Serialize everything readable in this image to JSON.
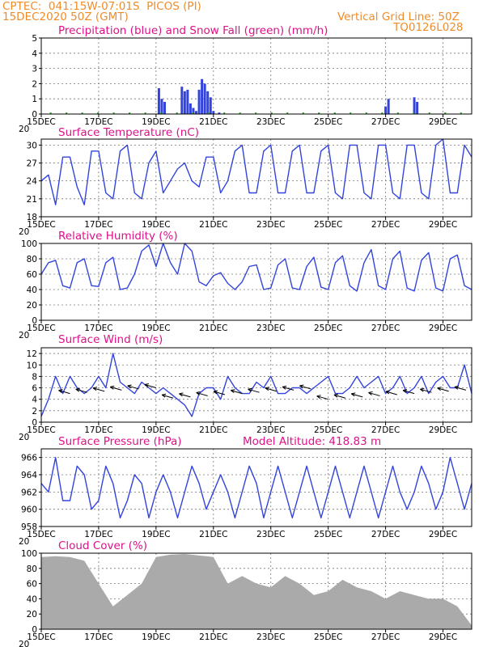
{
  "header": {
    "line1": "CPTEC:  041:15W-07:01S  PICOS (PI)",
    "line2": "15DEC2020 50Z (GMT)",
    "right1": "Vertical Grid Line: 50Z",
    "right2": "TQ0126L028"
  },
  "colors": {
    "header": "#f08c28",
    "title": "#dd1188",
    "line": "#3344dd",
    "snow": "#22aa22",
    "cloud": "#aaaaaa"
  },
  "x_tick_labels": [
    "15DEC",
    "17DEC",
    "19DEC",
    "21DEC",
    "23DEC",
    "25DEC",
    "27DEC",
    "29DEC"
  ],
  "x_year_fragment": "20",
  "panels": [
    {
      "id": "precip",
      "title": "Precipitation (blue) and Snow Fall (green) (mm/h)",
      "yticks": [
        "0",
        "1",
        "2",
        "3",
        "4",
        "5"
      ]
    },
    {
      "id": "temp",
      "title": "Surface Temperature (nC)",
      "yticks": [
        "18",
        "21",
        "24",
        "27",
        "30"
      ]
    },
    {
      "id": "rh",
      "title": "Relative Humidity (%)",
      "yticks": [
        "0",
        "20",
        "40",
        "60",
        "80",
        "100"
      ]
    },
    {
      "id": "wind",
      "title": "Surface Wind (m/s)",
      "yticks": [
        "0",
        "2",
        "4",
        "6",
        "8",
        "10",
        "12"
      ]
    },
    {
      "id": "pres",
      "title": "Surface Pressure (hPa)",
      "title2": "Model Altitude: 418.83 m",
      "yticks": [
        "958",
        "960",
        "962",
        "964",
        "966"
      ]
    },
    {
      "id": "cloud",
      "title": "Cloud Cover (%)",
      "yticks": [
        "0",
        "20",
        "40",
        "60",
        "80",
        "100"
      ]
    }
  ],
  "chart_data": [
    {
      "type": "bar",
      "title": "Precipitation (blue) and Snow Fall (green) (mm/h)",
      "x_unit": "days since 15DEC 00Z",
      "ylim": [
        0,
        5
      ],
      "x": [
        4.1,
        4.2,
        4.3,
        4.9,
        5.0,
        5.1,
        5.2,
        5.3,
        5.4,
        5.5,
        5.6,
        5.7,
        5.8,
        5.9,
        6.0,
        6.2,
        12.0,
        12.1,
        13.0,
        13.1
      ],
      "values": [
        1.7,
        1.0,
        0.8,
        1.8,
        1.5,
        1.6,
        0.7,
        0.4,
        0.2,
        1.6,
        2.3,
        2.0,
        1.5,
        1.1,
        0.2,
        0.1,
        0.5,
        1.0,
        1.1,
        0.8
      ]
    },
    {
      "type": "line",
      "title": "Surface Temperature (nC)",
      "ylim": [
        18,
        31
      ],
      "x": [
        0,
        0.25,
        0.5,
        0.75,
        1,
        1.25,
        1.5,
        1.75,
        2,
        2.25,
        2.5,
        2.75,
        3,
        3.25,
        3.5,
        3.75,
        4,
        4.25,
        4.5,
        4.75,
        5,
        5.25,
        5.5,
        5.75,
        6,
        6.25,
        6.5,
        6.75,
        7,
        7.25,
        7.5,
        7.75,
        8,
        8.25,
        8.5,
        8.75,
        9,
        9.25,
        9.5,
        9.75,
        10,
        10.25,
        10.5,
        10.75,
        11,
        11.25,
        11.5,
        11.75,
        12,
        12.25,
        12.5,
        12.75,
        13,
        13.25,
        13.5,
        13.75,
        14,
        14.25,
        14.5,
        14.75,
        15
      ],
      "values": [
        24,
        25,
        20,
        28,
        28,
        23,
        20,
        29,
        29,
        22,
        21,
        29,
        30,
        22,
        21,
        27,
        29,
        22,
        24,
        26,
        27,
        24,
        23,
        28,
        28,
        22,
        24,
        29,
        30,
        22,
        22,
        29,
        30,
        22,
        22,
        29,
        30,
        22,
        22,
        29,
        30,
        22,
        21,
        30,
        30,
        22,
        21,
        30,
        30,
        22,
        21,
        30,
        30,
        22,
        21,
        30,
        31,
        22,
        22,
        30,
        28
      ]
    },
    {
      "type": "line",
      "title": "Relative Humidity (%)",
      "ylim": [
        0,
        100
      ],
      "x": [
        0,
        0.25,
        0.5,
        0.75,
        1,
        1.25,
        1.5,
        1.75,
        2,
        2.25,
        2.5,
        2.75,
        3,
        3.25,
        3.5,
        3.75,
        4,
        4.25,
        4.5,
        4.75,
        5,
        5.25,
        5.5,
        5.75,
        6,
        6.25,
        6.5,
        6.75,
        7,
        7.25,
        7.5,
        7.75,
        8,
        8.25,
        8.5,
        8.75,
        9,
        9.25,
        9.5,
        9.75,
        10,
        10.25,
        10.5,
        10.75,
        11,
        11.25,
        11.5,
        11.75,
        12,
        12.25,
        12.5,
        12.75,
        13,
        13.25,
        13.5,
        13.75,
        14,
        14.25,
        14.5,
        14.75,
        15
      ],
      "values": [
        60,
        75,
        78,
        45,
        42,
        75,
        80,
        45,
        44,
        75,
        82,
        40,
        42,
        60,
        90,
        98,
        70,
        100,
        75,
        60,
        100,
        90,
        50,
        45,
        58,
        62,
        48,
        40,
        50,
        70,
        72,
        40,
        42,
        72,
        80,
        42,
        40,
        70,
        82,
        43,
        40,
        75,
        84,
        45,
        38,
        75,
        92,
        45,
        40,
        80,
        90,
        42,
        38,
        78,
        88,
        42,
        38,
        80,
        85,
        45,
        40
      ]
    },
    {
      "type": "line",
      "title": "Surface Wind (m/s)",
      "ylim": [
        0,
        13
      ],
      "x": [
        0,
        0.25,
        0.5,
        0.75,
        1,
        1.25,
        1.5,
        1.75,
        2,
        2.25,
        2.5,
        2.75,
        3,
        3.25,
        3.5,
        3.75,
        4,
        4.25,
        4.5,
        4.75,
        5,
        5.25,
        5.5,
        5.75,
        6,
        6.25,
        6.5,
        6.75,
        7,
        7.25,
        7.5,
        7.75,
        8,
        8.25,
        8.5,
        8.75,
        9,
        9.25,
        9.5,
        9.75,
        10,
        10.25,
        10.5,
        10.75,
        11,
        11.25,
        11.5,
        11.75,
        12,
        12.25,
        12.5,
        12.75,
        13,
        13.25,
        13.5,
        13.75,
        14,
        14.25,
        14.5,
        14.75,
        15
      ],
      "values": [
        1,
        4,
        8,
        5,
        8,
        6,
        5,
        6,
        8,
        6,
        12,
        7,
        6,
        5,
        7,
        6,
        5,
        6,
        5,
        4,
        3,
        1,
        5,
        6,
        6,
        4,
        8,
        6,
        5,
        5,
        7,
        6,
        8,
        5,
        5,
        6,
        6,
        5,
        6,
        7,
        8,
        5,
        5,
        6,
        8,
        6,
        7,
        8,
        5,
        6,
        8,
        5,
        6,
        8,
        5,
        7,
        8,
        6,
        6,
        10,
        5
      ]
    },
    {
      "type": "line",
      "title": "Surface Pressure (hPa)",
      "ylim": [
        958,
        967
      ],
      "x": [
        0,
        0.25,
        0.5,
        0.75,
        1,
        1.25,
        1.5,
        1.75,
        2,
        2.25,
        2.5,
        2.75,
        3,
        3.25,
        3.5,
        3.75,
        4,
        4.25,
        4.5,
        4.75,
        5,
        5.25,
        5.5,
        5.75,
        6,
        6.25,
        6.5,
        6.75,
        7,
        7.25,
        7.5,
        7.75,
        8,
        8.25,
        8.5,
        8.75,
        9,
        9.25,
        9.5,
        9.75,
        10,
        10.25,
        10.5,
        10.75,
        11,
        11.25,
        11.5,
        11.75,
        12,
        12.25,
        12.5,
        12.75,
        13,
        13.25,
        13.5,
        13.75,
        14,
        14.25,
        14.5,
        14.75,
        15
      ],
      "values": [
        963,
        962,
        966,
        961,
        961,
        965,
        964,
        960,
        961,
        965,
        963,
        959,
        961,
        964,
        963,
        959,
        962,
        964,
        962,
        959,
        962,
        965,
        963,
        960,
        962,
        964,
        962,
        959,
        962,
        965,
        963,
        959,
        962,
        965,
        962,
        959,
        962,
        965,
        962,
        959,
        962,
        965,
        962,
        959,
        962,
        965,
        962,
        959,
        962,
        965,
        962,
        960,
        962,
        965,
        963,
        960,
        962,
        966,
        963,
        960,
        963
      ]
    },
    {
      "type": "area",
      "title": "Cloud Cover (%)",
      "ylim": [
        0,
        100
      ],
      "x": [
        0,
        0.5,
        1,
        1.5,
        2,
        2.5,
        3,
        3.5,
        4,
        4.5,
        5,
        5.5,
        6,
        6.5,
        7,
        7.5,
        8,
        8.5,
        9,
        9.5,
        10,
        10.5,
        11,
        11.5,
        12,
        12.5,
        13,
        13.5,
        14,
        14.5,
        15
      ],
      "values": [
        95,
        96,
        95,
        90,
        60,
        30,
        45,
        60,
        95,
        98,
        99,
        97,
        95,
        60,
        70,
        60,
        55,
        70,
        60,
        45,
        50,
        65,
        55,
        50,
        40,
        50,
        45,
        40,
        40,
        30,
        5
      ]
    }
  ]
}
